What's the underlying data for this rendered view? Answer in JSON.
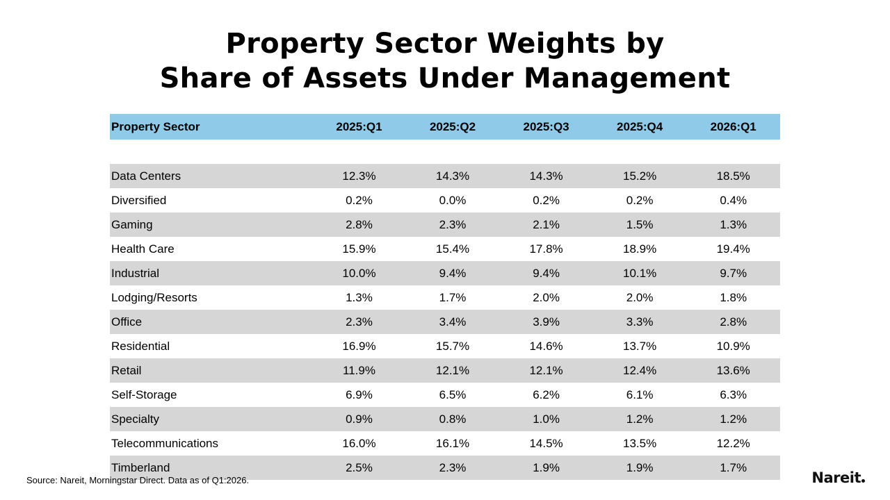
{
  "title": {
    "line1": "Property Sector Weights by",
    "line2": "Share of Assets Under Management"
  },
  "chart_data": {
    "type": "table",
    "columns": [
      "Property Sector",
      "2025:Q1",
      "2025:Q2",
      "2025:Q3",
      "2025:Q4",
      "2026:Q1"
    ],
    "rows": [
      [
        "Data Centers",
        "12.3%",
        "14.3%",
        "14.3%",
        "15.2%",
        "18.5%"
      ],
      [
        "Diversified",
        "0.2%",
        "0.0%",
        "0.2%",
        "0.2%",
        "0.4%"
      ],
      [
        "Gaming",
        "2.8%",
        "2.3%",
        "2.1%",
        "1.5%",
        "1.3%"
      ],
      [
        "Health Care",
        "15.9%",
        "15.4%",
        "17.8%",
        "18.9%",
        "19.4%"
      ],
      [
        "Industrial",
        "10.0%",
        "9.4%",
        "9.4%",
        "10.1%",
        "9.7%"
      ],
      [
        "Lodging/Resorts",
        "1.3%",
        "1.7%",
        "2.0%",
        "2.0%",
        "1.8%"
      ],
      [
        "Office",
        "2.3%",
        "3.4%",
        "3.9%",
        "3.3%",
        "2.8%"
      ],
      [
        "Residential",
        "16.9%",
        "15.7%",
        "14.6%",
        "13.7%",
        "10.9%"
      ],
      [
        "Retail",
        "11.9%",
        "12.1%",
        "12.1%",
        "12.4%",
        "13.6%"
      ],
      [
        "Self-Storage",
        "6.9%",
        "6.5%",
        "6.2%",
        "6.1%",
        "6.3%"
      ],
      [
        "Specialty",
        "0.9%",
        "0.8%",
        "1.0%",
        "1.2%",
        "1.2%"
      ],
      [
        "Telecommunications",
        "16.0%",
        "16.1%",
        "14.5%",
        "13.5%",
        "12.2%"
      ],
      [
        "Timberland",
        "2.5%",
        "2.3%",
        "1.9%",
        "1.9%",
        "1.7%"
      ]
    ]
  },
  "colors": {
    "header_bg": "#8fcbe9",
    "stripe_bg": "#d6d6d6"
  },
  "footer": {
    "source": "Source: Nareit, Morningstar Direct. Data as of Q1:2026.",
    "logo": "Nareit"
  }
}
